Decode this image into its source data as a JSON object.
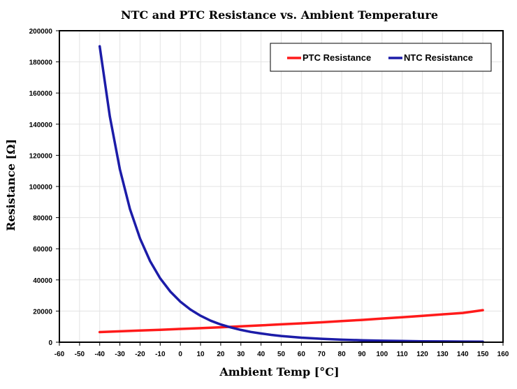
{
  "chart_data": {
    "type": "line",
    "title": "NTC and PTC Resistance vs. Ambient Temperature",
    "xlabel": "Ambient Temp [°C]",
    "ylabel": "Resistance [Ω]",
    "xlim": [
      -60,
      160
    ],
    "ylim": [
      0,
      200000
    ],
    "x_ticks": [
      -60,
      -50,
      -40,
      -30,
      -20,
      -10,
      0,
      10,
      20,
      30,
      40,
      50,
      60,
      70,
      80,
      90,
      100,
      110,
      120,
      130,
      140,
      150,
      160
    ],
    "y_ticks": [
      0,
      20000,
      40000,
      60000,
      80000,
      100000,
      120000,
      140000,
      160000,
      180000,
      200000
    ],
    "grid": true,
    "legend_position": "top-right",
    "series": [
      {
        "name": "PTC Resistance",
        "color": "#ff1a1a",
        "x": [
          -40,
          -30,
          -20,
          -10,
          0,
          10,
          20,
          30,
          40,
          50,
          60,
          70,
          80,
          90,
          100,
          110,
          120,
          130,
          140,
          150
        ],
        "y": [
          6500,
          7000,
          7500,
          8000,
          8500,
          9000,
          9600,
          10200,
          10800,
          11500,
          12100,
          12800,
          13600,
          14300,
          15200,
          16000,
          16900,
          17900,
          18800,
          20600
        ]
      },
      {
        "name": "NTC Resistance",
        "color": "#1c1ca8",
        "x": [
          -40,
          -35,
          -30,
          -25,
          -20,
          -15,
          -10,
          -5,
          0,
          5,
          10,
          15,
          20,
          25,
          30,
          35,
          40,
          45,
          50,
          60,
          70,
          80,
          90,
          100,
          110,
          120,
          130,
          140,
          150
        ],
        "y": [
          190000,
          145000,
          111000,
          85500,
          66500,
          52000,
          41000,
          32500,
          26000,
          21000,
          17000,
          13800,
          11400,
          9500,
          7900,
          6600,
          5600,
          4700,
          4000,
          2900,
          2200,
          1600,
          1250,
          950,
          750,
          600,
          480,
          390,
          320
        ]
      }
    ]
  }
}
